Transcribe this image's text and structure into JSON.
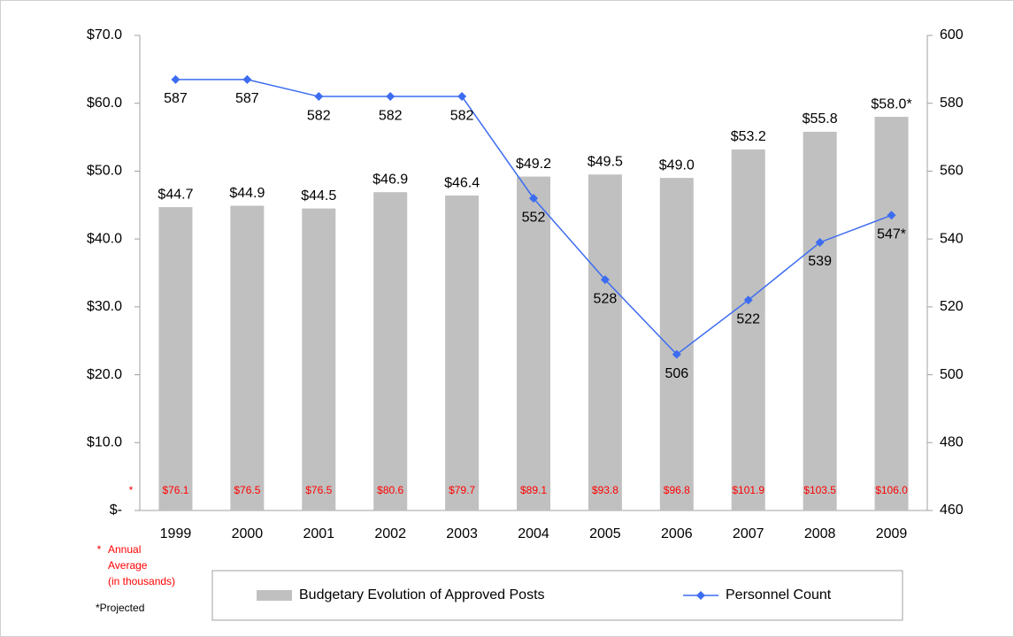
{
  "chart_data": {
    "type": "combo",
    "categories": [
      "1999",
      "2000",
      "2001",
      "2002",
      "2003",
      "2004",
      "2005",
      "2006",
      "2007",
      "2008",
      "2009"
    ],
    "series": [
      {
        "name": "Budgetary Evolution of Approved Posts",
        "type": "bar",
        "color": "#c0c0c0",
        "values": [
          44.7,
          44.9,
          44.5,
          46.9,
          46.4,
          49.2,
          49.5,
          49.0,
          53.2,
          55.8,
          58.0
        ],
        "value_labels": [
          "$44.7",
          "$44.9",
          "$44.5",
          "$46.9",
          "$46.4",
          "$49.2",
          "$49.5",
          "$49.0",
          "$53.2",
          "$55.8",
          "$58.0*"
        ]
      },
      {
        "name": "Personnel Count",
        "type": "line",
        "axis": "y2",
        "color": "#3c6cf0",
        "values": [
          587,
          587,
          582,
          582,
          582,
          552,
          528,
          506,
          522,
          539,
          547
        ],
        "value_labels": [
          "587",
          "587",
          "582",
          "582",
          "582",
          "552",
          "528",
          "506",
          "522",
          "539",
          "547*"
        ]
      }
    ],
    "annual_average": {
      "values": [
        76.1,
        76.5,
        76.5,
        80.6,
        79.7,
        89.1,
        93.8,
        96.8,
        101.9,
        103.5,
        106.0
      ],
      "value_labels": [
        "$76.1",
        "$76.5",
        "$76.5",
        "$80.6",
        "$79.7",
        "$89.1",
        "$93.8",
        "$96.8",
        "$101.9",
        "$103.5",
        "$106.0"
      ],
      "color": "#ff0000"
    },
    "ylim": [
      0,
      70
    ],
    "yticks": [
      {
        "value": 0,
        "label": "$-"
      },
      {
        "value": 10,
        "label": "$10.0"
      },
      {
        "value": 20,
        "label": "$20.0"
      },
      {
        "value": 30,
        "label": "$30.0"
      },
      {
        "value": 40,
        "label": "$40.0"
      },
      {
        "value": 50,
        "label": "$50.0"
      },
      {
        "value": 60,
        "label": "$60.0"
      },
      {
        "value": 70,
        "label": "$70.0"
      }
    ],
    "y2lim": [
      460,
      600
    ],
    "y2ticks": [
      460,
      480,
      500,
      520,
      540,
      560,
      580,
      600
    ],
    "grid": false,
    "legend": "bottom",
    "notes": {
      "asterisk": "*",
      "annual_average": [
        "Annual",
        "Average",
        "(in thousands)"
      ],
      "projected": "*Projected"
    }
  }
}
